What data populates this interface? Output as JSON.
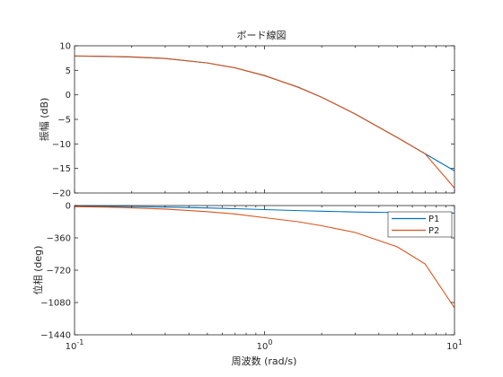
{
  "figure": {
    "title": "ボード線図",
    "xlabel": "周波数 (rad/s)"
  },
  "chart_data": [
    {
      "type": "line",
      "title": "ボード線図",
      "ylabel": "振幅 (dB)",
      "xlabel": "",
      "xscale": "log",
      "xlim": [
        0.1,
        10
      ],
      "ylim": [
        -20,
        10
      ],
      "yticks": [
        10,
        5,
        0,
        -5,
        -10,
        -15,
        -20
      ],
      "grid": false,
      "series": [
        {
          "name": "P1",
          "color": "#0072BD",
          "x": [
            0.1,
            0.15,
            0.2,
            0.3,
            0.5,
            0.7,
            1.0,
            1.5,
            2.0,
            3.0,
            5.0,
            7.0,
            10.0
          ],
          "y": [
            7.9,
            7.82,
            7.7,
            7.4,
            6.5,
            5.5,
            3.9,
            1.6,
            -0.5,
            -3.9,
            -8.7,
            -12.0,
            -15.5
          ]
        },
        {
          "name": "P2",
          "color": "#D95319",
          "x": [
            0.1,
            0.15,
            0.2,
            0.3,
            0.5,
            0.7,
            1.0,
            1.5,
            2.0,
            3.0,
            5.0,
            7.0,
            10.0
          ],
          "y": [
            7.93,
            7.85,
            7.74,
            7.42,
            6.5,
            5.5,
            3.95,
            1.55,
            -0.5,
            -3.9,
            -8.7,
            -12.0,
            -19.0
          ]
        }
      ]
    },
    {
      "type": "line",
      "ylabel": "位相 (deg)",
      "xlabel": "周波数 (rad/s)",
      "xscale": "log",
      "xlim": [
        0.1,
        10
      ],
      "xticks": [
        0.1,
        1,
        10
      ],
      "xtick_labels": [
        {
          "base": "10",
          "exp": "-1"
        },
        {
          "base": "10",
          "exp": "0"
        },
        {
          "base": "10",
          "exp": "1"
        }
      ],
      "ylim": [
        -1440,
        0
      ],
      "yticks": [
        0,
        -360,
        -720,
        -1080,
        -1440
      ],
      "grid": false,
      "legend": {
        "placement": "top-right",
        "entries": [
          "P1",
          "P2"
        ]
      },
      "series": [
        {
          "name": "P1",
          "color": "#0072BD",
          "x": [
            0.1,
            0.15,
            0.2,
            0.3,
            0.5,
            0.7,
            1.0,
            1.5,
            2.0,
            3.0,
            5.0,
            7.0,
            10.0
          ],
          "y": [
            -5.7,
            -8.5,
            -11.3,
            -16.7,
            -26.6,
            -35.0,
            -45.0,
            -56.3,
            -63.4,
            -71.6,
            -78.7,
            -81.9,
            -84.3
          ]
        },
        {
          "name": "P2",
          "color": "#D95319",
          "x": [
            0.1,
            0.15,
            0.2,
            0.3,
            0.5,
            0.7,
            1.0,
            1.5,
            2.0,
            3.0,
            5.0,
            7.0,
            10.0
          ],
          "y": [
            -12,
            -18,
            -26,
            -39,
            -68,
            -94,
            -135,
            -180,
            -225,
            -300,
            -460,
            -650,
            -1140
          ]
        }
      ]
    }
  ]
}
